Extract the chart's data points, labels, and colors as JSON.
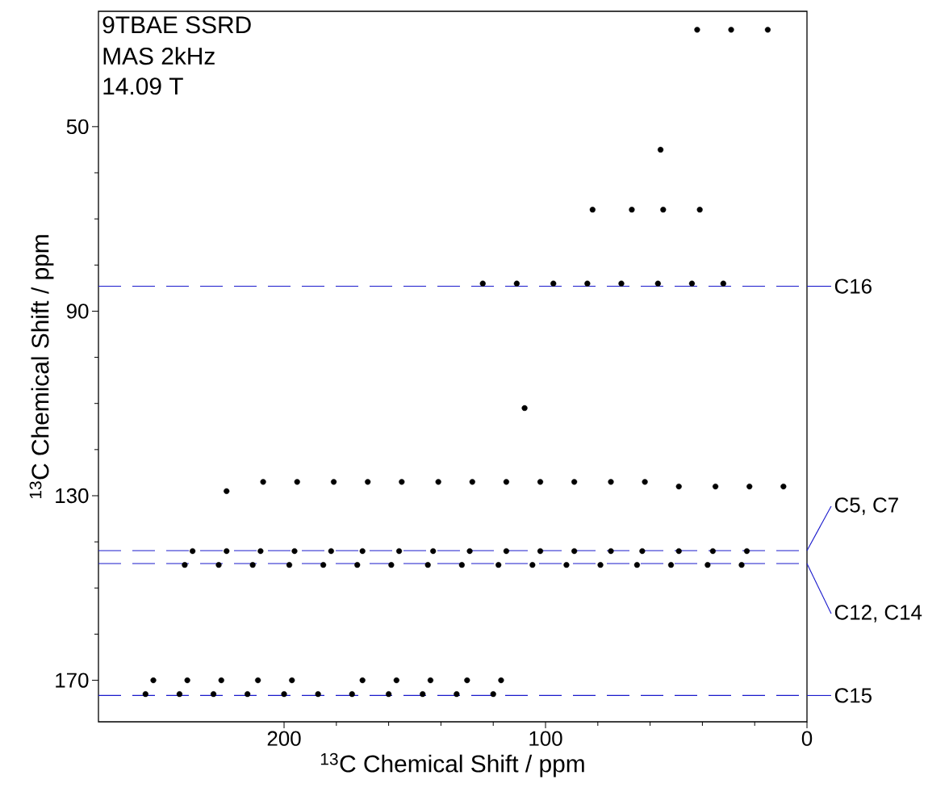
{
  "chart_data": {
    "type": "scatter",
    "xlabel": "$^{13}$C Chemical Shift / ppm",
    "ylabel": "$^{13}$C Chemical Shift / ppm",
    "annotations": [
      "9TBAE SSRD",
      "MAS 2kHz",
      "14.09 T"
    ],
    "xlim": [
      271,
      0
    ],
    "ylim": [
      179,
      25
    ],
    "xticks": [
      200,
      100,
      0
    ],
    "yticks": [
      50,
      90,
      130,
      170
    ],
    "marker": "circle",
    "grid": false,
    "series": [
      {
        "color": "#000000",
        "x": [
          42,
          29,
          15,
          56,
          82,
          67,
          55,
          41,
          124,
          111,
          97,
          84,
          71,
          57,
          44,
          32,
          108,
          222,
          208,
          195,
          181,
          168,
          155,
          141,
          128,
          115,
          102,
          89,
          75,
          62,
          49,
          35,
          22,
          9,
          235,
          222,
          209,
          196,
          182,
          170,
          156,
          143,
          129,
          115,
          102,
          89,
          75,
          63,
          49,
          36,
          23,
          238,
          225,
          212,
          198,
          185,
          172,
          159,
          145,
          132,
          118,
          105,
          92,
          79,
          65,
          52,
          38,
          25,
          253,
          240,
          227,
          214,
          200,
          187,
          174,
          160,
          147,
          134,
          120,
          250,
          237,
          224,
          210,
          197,
          170,
          157,
          144,
          130,
          117
        ],
        "values": [
          29,
          29,
          29,
          55,
          68,
          68,
          68,
          68,
          84,
          84,
          84,
          84,
          84,
          84,
          84,
          84,
          111,
          129,
          127,
          127,
          127,
          127,
          127,
          127,
          127,
          127,
          127,
          127,
          127,
          127,
          128,
          128,
          128,
          128,
          142,
          142,
          142,
          142,
          142,
          142,
          142,
          142,
          142,
          142,
          142,
          142,
          142,
          142,
          142,
          142,
          142,
          145,
          145,
          145,
          145,
          145,
          145,
          145,
          145,
          145,
          145,
          145,
          145,
          145,
          145,
          145,
          145,
          145,
          173,
          173,
          173,
          173,
          173,
          173,
          173,
          173,
          173,
          173,
          173,
          170,
          170,
          170,
          170,
          170,
          170,
          170,
          170,
          170,
          170
        ]
      }
    ],
    "ref_lines": [
      {
        "axis": "y",
        "value": 84.6,
        "label": "C16",
        "color": "#1a1acc",
        "line_style": "dashed"
      },
      {
        "axis": "y",
        "value": 141.9,
        "label": "C5, C7",
        "color": "#1a1acc",
        "line_style": "dashed"
      },
      {
        "axis": "y",
        "value": 144.7,
        "label": "C12, C14",
        "color": "#1a1acc",
        "line_style": "dashed"
      },
      {
        "axis": "y",
        "value": 173.3,
        "label": "C15",
        "color": "#1a1acc",
        "line_style": "dashed"
      }
    ]
  }
}
